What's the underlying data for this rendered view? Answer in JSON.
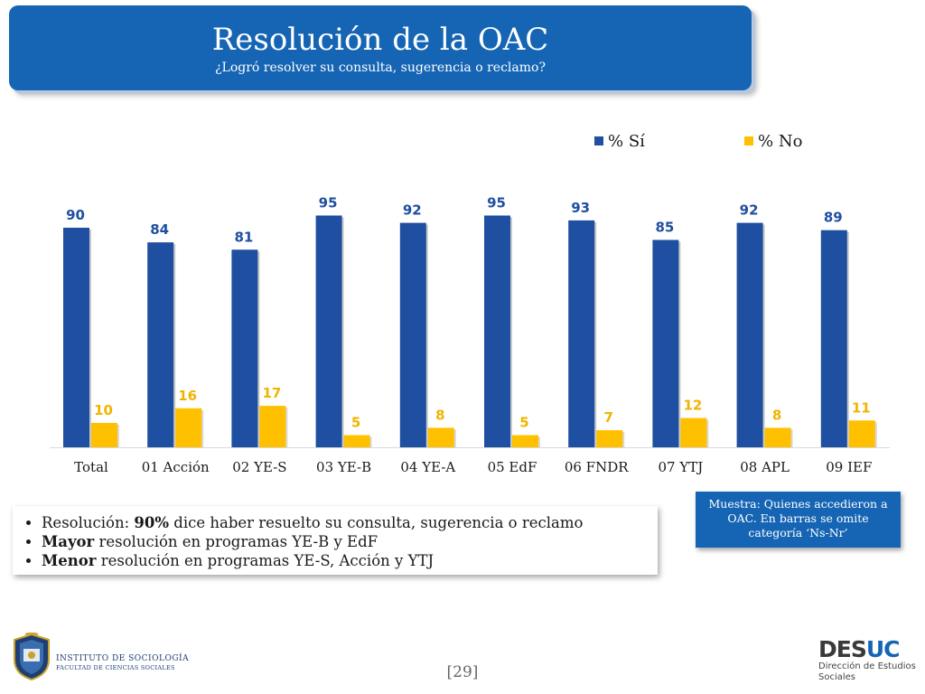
{
  "header": {
    "title": "Resolución de la OAC",
    "subtitle": "¿Logró resolver su consulta, sugerencia o reclamo?"
  },
  "colors": {
    "si": "#1f4fa0",
    "no": "#ffc000",
    "header": "#1565b4"
  },
  "chart_data": {
    "type": "bar",
    "categories": [
      "Total",
      "01 Acción",
      "02 YE-S",
      "03 YE-B",
      "04 YE-A",
      "05 EdF",
      "06 FNDR",
      "07 YTJ",
      "08 APL",
      "09 IEF"
    ],
    "series": [
      {
        "name": "% Sí",
        "values": [
          90,
          84,
          81,
          95,
          92,
          95,
          93,
          85,
          92,
          89
        ]
      },
      {
        "name": "% No",
        "values": [
          10,
          16,
          17,
          5,
          8,
          5,
          7,
          12,
          8,
          11
        ]
      }
    ],
    "ylim": [
      0,
      100
    ],
    "legend_position": "top-right",
    "grid": false
  },
  "bullets": [
    {
      "prefix": "Resolución: ",
      "bold": "90%",
      "rest": " dice haber resuelto su consulta, sugerencia o reclamo"
    },
    {
      "prefix": "",
      "bold": "Mayor",
      "rest": " resolución en programas YE-B y EdF"
    },
    {
      "prefix": "",
      "bold": "Menor",
      "rest": " resolución en programas YE-S, Acción y YTJ"
    }
  ],
  "note": "Muestra: Quienes accedieron a OAC. En barras se omite categoría ‘Ns-Nr’",
  "footer": {
    "institute_line1": "INSTITUTO DE SOCIOLOGÍA",
    "institute_line2": "FACULTAD DE CIENCIAS SOCIALES",
    "page": "[29]",
    "desuc_a": "DES",
    "desuc_b": "UC",
    "desuc_sub1": "Dirección de Estudios",
    "desuc_sub2": "Sociales"
  }
}
